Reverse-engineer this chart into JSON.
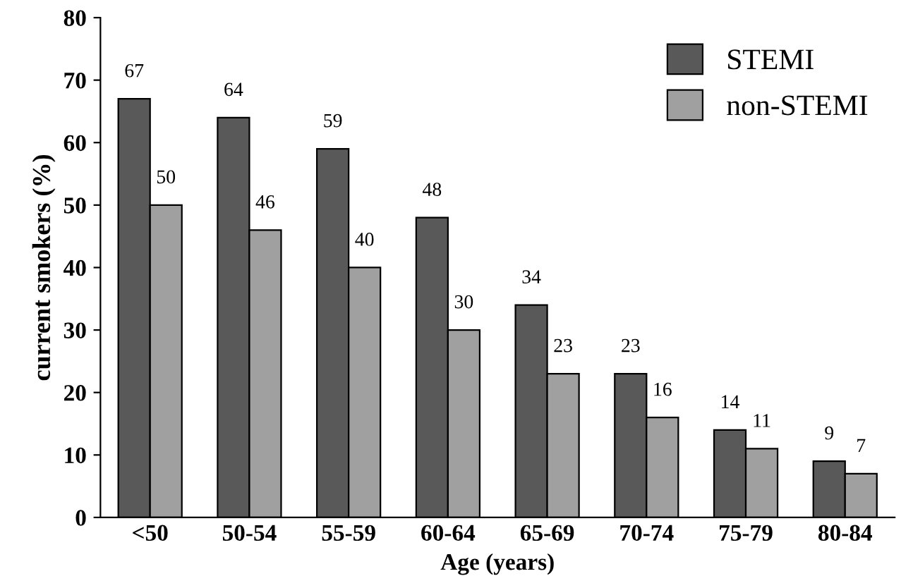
{
  "chart_data": {
    "type": "bar",
    "xlabel": "Age (years)",
    "ylabel": "current smokers (%)",
    "categories": [
      "<50",
      "50-54",
      "55-59",
      "60-64",
      "65-69",
      "70-74",
      "75-79",
      "80-84"
    ],
    "series": [
      {
        "name": "STEMI",
        "color": "#595959",
        "values": [
          67,
          64,
          59,
          48,
          34,
          23,
          14,
          9
        ]
      },
      {
        "name": "non-STEMI",
        "color": "#a0a0a0",
        "values": [
          50,
          46,
          40,
          30,
          23,
          16,
          11,
          7
        ]
      }
    ],
    "ylim": [
      0,
      80
    ],
    "yticks": [
      0,
      10,
      20,
      30,
      40,
      50,
      60,
      70,
      80
    ],
    "data_labels": true,
    "legend": "top right",
    "grid": false
  }
}
